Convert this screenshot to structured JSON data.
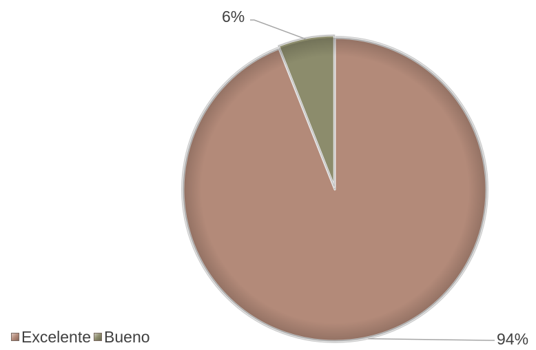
{
  "chart_data": {
    "type": "pie",
    "title": "",
    "categories": [
      "Excelente",
      "Bueno"
    ],
    "values": [
      94,
      6
    ],
    "value_unit": "%",
    "data_labels": [
      "94%",
      "6%"
    ],
    "colors": [
      "#b38a79",
      "#8c8c6c"
    ],
    "legend_placement": "bottom-left",
    "start_angle": "12 o'clock",
    "direction": "clockwise"
  }
}
